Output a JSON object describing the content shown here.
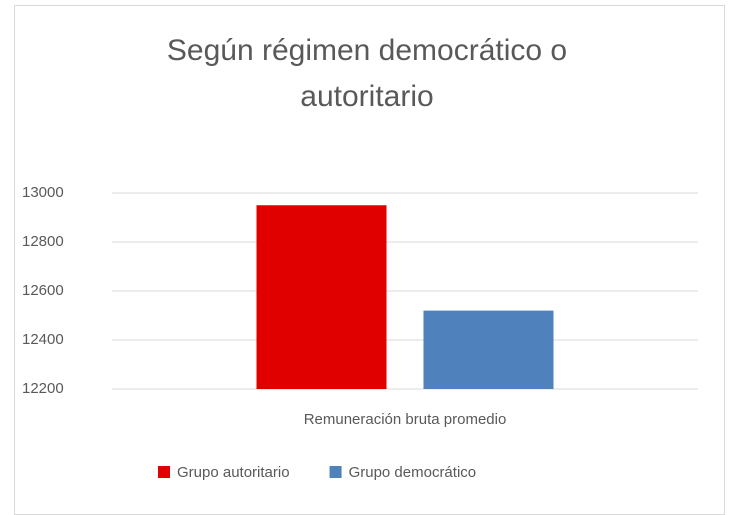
{
  "chart_data": {
    "type": "bar",
    "title": "Según régimen democrático o autoritario",
    "categories": [
      "Remuneración bruta promedio"
    ],
    "series": [
      {
        "name": "Grupo autoritario",
        "color": "#e00000",
        "values": [
          12950
        ]
      },
      {
        "name": "Grupo democrático",
        "color": "#4f81bd",
        "values": [
          12520
        ]
      }
    ],
    "ylim": [
      12200,
      13000
    ],
    "yticks": [
      12200,
      12400,
      12600,
      12800,
      13000
    ],
    "grid": true,
    "legend": "bottom"
  }
}
